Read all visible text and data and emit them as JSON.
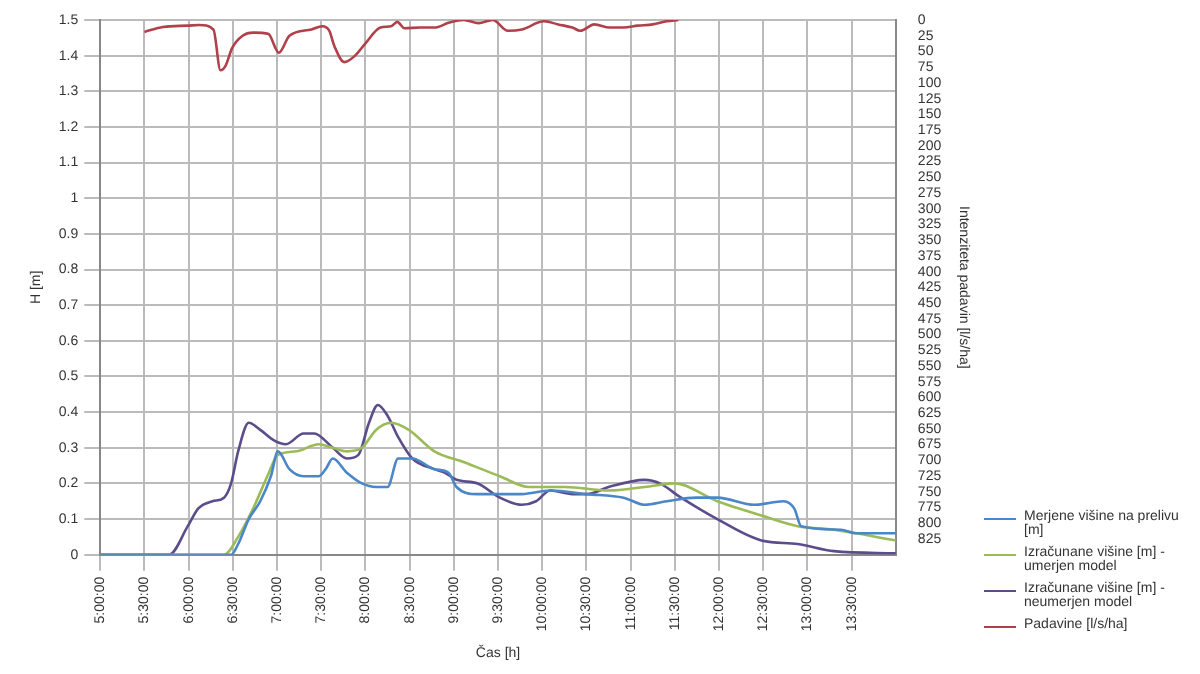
{
  "chart_data": {
    "type": "line",
    "xlabel": "Čas [h]",
    "ylabel": "H [m]",
    "y2label": "Intenziteta padavin [l/s/ha]",
    "xlim": [
      5,
      14
    ],
    "xticks": [
      {
        "value": 5,
        "label": "5:00:00"
      },
      {
        "value": 5.5,
        "label": "5:30:00"
      },
      {
        "value": 6,
        "label": "6:00:00"
      },
      {
        "value": 6.5,
        "label": "6:30:00"
      },
      {
        "value": 7,
        "label": "7:00:00"
      },
      {
        "value": 7.5,
        "label": "7:30:00"
      },
      {
        "value": 8,
        "label": "8:00:00"
      },
      {
        "value": 8.5,
        "label": "8:30:00"
      },
      {
        "value": 9,
        "label": "9:00:00"
      },
      {
        "value": 9.5,
        "label": "9:30:00"
      },
      {
        "value": 10,
        "label": "10:00:00"
      },
      {
        "value": 10.5,
        "label": "10:30:00"
      },
      {
        "value": 11,
        "label": "11:00:00"
      },
      {
        "value": 11.5,
        "label": "11:30:00"
      },
      {
        "value": 12,
        "label": "12:00:00"
      },
      {
        "value": 12.5,
        "label": "12:30:00"
      },
      {
        "value": 13,
        "label": "13:00:00"
      },
      {
        "value": 13.5,
        "label": "13:30:00"
      }
    ],
    "ylim": [
      0,
      1.5
    ],
    "yticks": [
      0,
      0.1,
      0.2,
      0.3,
      0.4,
      0.5,
      0.6,
      0.7,
      0.8,
      0.9,
      1,
      1.1,
      1.2,
      1.3,
      1.4,
      1.5
    ],
    "y2lim": [
      850,
      0
    ],
    "y2ticks": [
      0,
      25,
      50,
      75,
      100,
      125,
      150,
      175,
      200,
      225,
      250,
      275,
      300,
      325,
      350,
      375,
      400,
      425,
      450,
      475,
      500,
      525,
      550,
      575,
      600,
      625,
      650,
      675,
      700,
      725,
      750,
      775,
      800,
      825
    ],
    "grid": true,
    "legend": "right",
    "marker": "none",
    "line_style": "solid",
    "series": [
      {
        "name": "Merjene višine na prelivu [m]",
        "color": "#4a86c8",
        "x": [
          5,
          6.48,
          6.56,
          6.68,
          6.81,
          6.93,
          7.01,
          7.14,
          7.3,
          7.47,
          7.55,
          7.63,
          7.79,
          7.96,
          8.12,
          8.25,
          8.37,
          8.53,
          8.78,
          8.94,
          9.03,
          9.27,
          9.77,
          10.09,
          10.51,
          10.92,
          11.16,
          11.41,
          11.74,
          11.98,
          12.4,
          12.73,
          12.85,
          12.93,
          13.38,
          13.55,
          14
        ],
        "values": [
          0,
          0,
          0.03,
          0.1,
          0.15,
          0.22,
          0.29,
          0.24,
          0.22,
          0.22,
          0.24,
          0.27,
          0.23,
          0.2,
          0.19,
          0.19,
          0.27,
          0.27,
          0.24,
          0.23,
          0.19,
          0.17,
          0.17,
          0.18,
          0.17,
          0.16,
          0.14,
          0.15,
          0.16,
          0.16,
          0.14,
          0.15,
          0.13,
          0.08,
          0.07,
          0.06,
          0.06
        ]
      },
      {
        "name": "Izračunane višine [m] - umerjen model",
        "color": "#9bbb59",
        "x": [
          5,
          6.4,
          6.56,
          6.73,
          6.89,
          7.01,
          7.22,
          7.47,
          7.63,
          7.79,
          7.96,
          8.12,
          8.29,
          8.49,
          8.78,
          9.11,
          9.52,
          9.85,
          10.26,
          10.75,
          11.16,
          11.49,
          11.98,
          12.48,
          12.89,
          13.3,
          14
        ],
        "values": [
          0,
          0,
          0.05,
          0.13,
          0.22,
          0.28,
          0.29,
          0.31,
          0.3,
          0.29,
          0.3,
          0.35,
          0.37,
          0.35,
          0.29,
          0.26,
          0.22,
          0.19,
          0.19,
          0.18,
          0.19,
          0.2,
          0.15,
          0.11,
          0.08,
          0.07,
          0.04
        ]
      },
      {
        "name": "Izračunane višine [m] - neumerjen model",
        "color": "#5b4d8c",
        "x": [
          5,
          5.78,
          5.99,
          6.11,
          6.27,
          6.4,
          6.48,
          6.56,
          6.68,
          6.81,
          6.97,
          7.1,
          7.3,
          7.42,
          7.63,
          7.79,
          7.92,
          8.04,
          8.14,
          8.25,
          8.37,
          8.53,
          8.78,
          8.9,
          9.03,
          9.27,
          9.52,
          9.77,
          9.93,
          10.09,
          10.34,
          10.51,
          10.75,
          11.16,
          11.33,
          11.57,
          11.98,
          12.48,
          12.89,
          13.3,
          14
        ],
        "values": [
          0,
          0,
          0.08,
          0.13,
          0.15,
          0.16,
          0.2,
          0.29,
          0.37,
          0.35,
          0.32,
          0.31,
          0.34,
          0.34,
          0.3,
          0.27,
          0.28,
          0.37,
          0.42,
          0.39,
          0.33,
          0.27,
          0.24,
          0.23,
          0.21,
          0.2,
          0.16,
          0.14,
          0.15,
          0.18,
          0.17,
          0.17,
          0.19,
          0.21,
          0.2,
          0.16,
          0.1,
          0.04,
          0.03,
          0.01,
          0.004
        ]
      },
      {
        "name": "Padavine [l/s/ha]",
        "color": "#b0414a",
        "axis": "y2",
        "x": [
          5.5,
          5.71,
          5.99,
          6.12,
          6.28,
          6.36,
          6.42,
          6.49,
          6.61,
          6.73,
          6.9,
          7.02,
          7.14,
          7.39,
          7.51,
          7.59,
          7.65,
          7.76,
          7.88,
          8,
          8.17,
          8.29,
          8.36,
          8.44,
          8.62,
          8.78,
          8.95,
          9.11,
          9.28,
          9.44,
          9.61,
          9.77,
          10.02,
          10.18,
          10.34,
          10.43,
          10.59,
          10.76,
          10.92,
          11.08,
          11.25,
          11.41,
          11.54
        ],
        "values": [
          19,
          11,
          9,
          8,
          15,
          80,
          72,
          45,
          25,
          20,
          22,
          52,
          25,
          15,
          10,
          17,
          42,
          67,
          57,
          37,
          12,
          10,
          3,
          13,
          12,
          12,
          4,
          0,
          5,
          0,
          17,
          15,
          2,
          7,
          12,
          17,
          7,
          12,
          12,
          9,
          7,
          2,
          0
        ]
      }
    ]
  }
}
